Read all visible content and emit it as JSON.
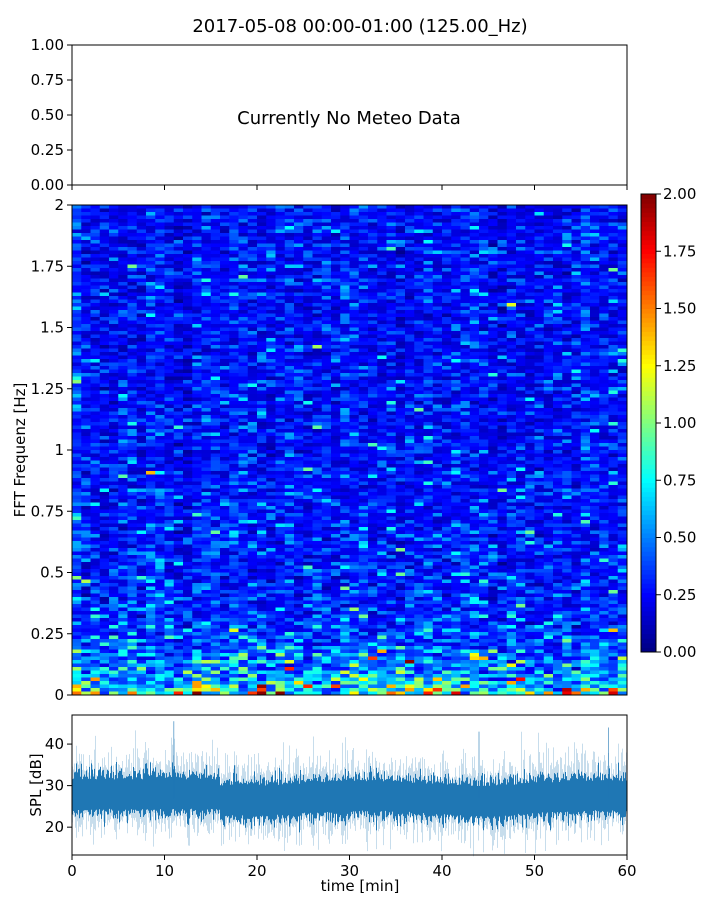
{
  "title": "2017-05-08 00:00-01:00 (125.00_Hz)",
  "chart_data": [
    {
      "type": "line",
      "panel": "meteo",
      "annotation": "Currently No Meteo Data",
      "ylim": [
        0,
        1
      ],
      "yticks": [
        "0.00",
        "0.25",
        "0.50",
        "0.75",
        "1.00"
      ],
      "xlim": [
        0,
        60
      ],
      "xticks_unlabeled": [
        0,
        10,
        20,
        30,
        40,
        50,
        60
      ],
      "series": []
    },
    {
      "type": "heatmap",
      "panel": "spectrogram",
      "ylabel": "FFT Frequenz [Hz]",
      "ylim": [
        0,
        2
      ],
      "yticks": [
        "0",
        "0.25",
        "0.5",
        "0.75",
        "1",
        "1.25",
        "1.5",
        "1.75",
        "2"
      ],
      "xlim": [
        0,
        60
      ],
      "colormap": "jet",
      "clim": [
        0,
        2
      ],
      "colorbar_ticks": [
        "0.00",
        "0.25",
        "0.50",
        "0.75",
        "1.00",
        "1.25",
        "1.50",
        "1.75",
        "2.00"
      ],
      "typical_value": 0.25,
      "low_frequency_value": 0.7
    },
    {
      "type": "line",
      "panel": "spl",
      "xlabel": "time [min]",
      "ylabel": "SPL [dB]",
      "xlim": [
        0,
        60
      ],
      "ylim": [
        13.3,
        47
      ],
      "xticks": [
        "0",
        "10",
        "20",
        "30",
        "40",
        "50",
        "60"
      ],
      "yticks": [
        "20",
        "30",
        "40"
      ],
      "color": "#1f77b4",
      "mean_level_db": 27,
      "mean_level_first_15min_db": 28,
      "peaks": [
        {
          "x": 11,
          "y": 45.5
        },
        {
          "x": 58,
          "y": 44
        },
        {
          "x": 44,
          "y": 43
        }
      ]
    }
  ]
}
